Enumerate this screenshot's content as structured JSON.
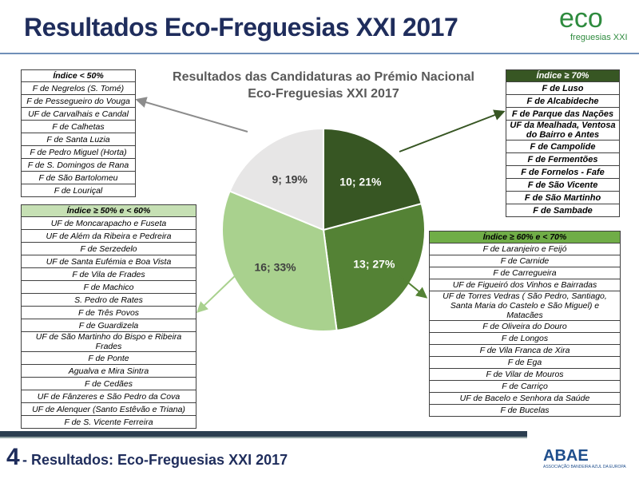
{
  "header": {
    "title": "Resultados Eco-Freguesias XXI 2017"
  },
  "logo": {
    "main": "eco",
    "sub": "freguesias XXI"
  },
  "chart_data": {
    "type": "pie",
    "title": "Resultados das Candidaturas ao Prémio Nacional Eco-Freguesias XXI 2017",
    "title_lines": [
      "Resultados das Candidaturas ao Prémio Nacional",
      "Eco-Freguesias XXI 2017"
    ],
    "slices": [
      {
        "label": "10; 21%",
        "value": 10,
        "percent": 21,
        "color": "#375623"
      },
      {
        "label": "13; 27%",
        "value": 13,
        "percent": 27,
        "color": "#548235"
      },
      {
        "label": "16; 33%",
        "value": 16,
        "percent": 33,
        "color": "#a9d18e"
      },
      {
        "label": "9; 19%",
        "value": 9,
        "percent": 19,
        "color": "#e7e6e6"
      }
    ]
  },
  "tables": {
    "lt50": {
      "header": "Índice < 50%",
      "rows": [
        "F de Negrelos (S. Tomé)",
        "F de Pessegueiro do Vouga",
        "UF de Carvalhais e Candal",
        "F de Calhetas",
        "F de Santa Luzia",
        "F de Pedro Miguel (Horta)",
        "F de S. Domingos de Rana",
        "F de São Bartolomeu",
        "F de Louriçal"
      ]
    },
    "b50_60": {
      "header": "Índice ≥ 50% e  < 60%",
      "rows": [
        "UF de Moncarapacho e Fuseta",
        "UF de Além da Ribeira e Pedreira",
        "F de Serzedelo",
        "UF de Santa Eufémia e Boa Vista",
        "F de Vila de Frades",
        "F de Machico",
        "S. Pedro de Rates",
        "F de Três Povos",
        "F de Guardizela",
        "UF de São Martinho do Bispo e Ribeira Frades",
        "F de Ponte",
        "Agualva e Mira Sintra",
        "F de Cedães",
        "UF de Fânzeres e São Pedro da Cova",
        "UF de Alenquer (Santo Estêvão e Triana)",
        "F de S. Vicente Ferreira"
      ]
    },
    "ge70": {
      "header": "Índice ≥ 70%",
      "rows": [
        "F de Luso",
        "F de Alcabideche",
        "F de Parque das Nações",
        "UF da Mealhada, Ventosa do Bairro e Antes",
        "F de Campolide",
        "F de Fermentões",
        "F de Fornelos - Fafe",
        "F de São Vicente",
        "F de São Martinho",
        "F de Sambade"
      ]
    },
    "b60_70": {
      "header": "Índice ≥ 60% e  < 70%",
      "rows": [
        "F de Laranjeiro e Feijó",
        "F de Carnide",
        "F de Carregueira",
        "UF de Figueiró dos Vinhos e Bairradas",
        "UF de Torres Vedras ( São Pedro, Santiago, Santa Maria do Castelo e São Miguel) e Matacães",
        "F de Oliveira do Douro",
        "F de Longos",
        "F de Vila Franca de Xira",
        "F de Ega",
        "F de Vilar de Mouros",
        "F de Carriço",
        "UF de Bacelo e Senhora da Saúde",
        "F de Bucelas"
      ]
    }
  },
  "footer": {
    "number": "4",
    "text": "- Resultados: Eco-Freguesias XXI 2017",
    "brand": "ABAE",
    "brand_sub": "ASSOCIAÇÃO BANDEIRA AZUL DA EUROPA"
  }
}
